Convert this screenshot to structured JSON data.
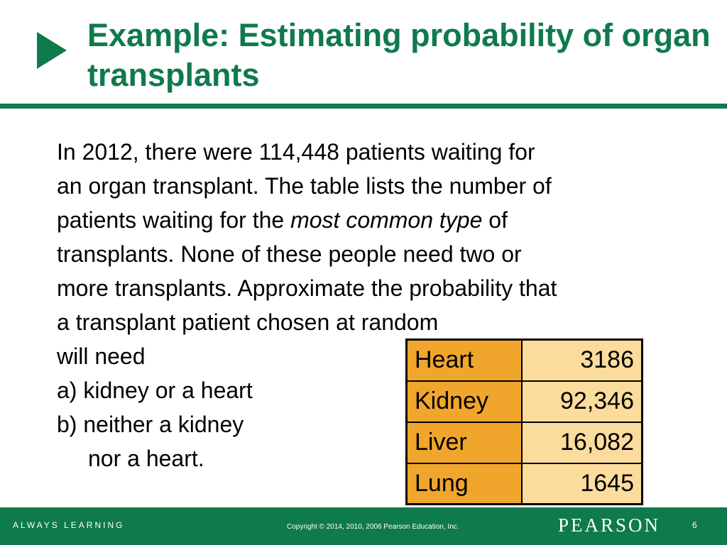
{
  "slide": {
    "title": "Example: Estimating probability of organ transplants",
    "bullet_icon": "right-triangle-icon",
    "accent_color": "#0f7a4c"
  },
  "body": {
    "line1": "In 2012, there were 114,448 patients waiting for",
    "line2": "an organ transplant. The table lists the number of",
    "line3_pre": "patients waiting for the ",
    "line3_em": "most common type",
    "line3_post": " of",
    "line4": "transplants. None of these people need two or",
    "line5": "more transplants. Approximate the probability that",
    "line6": "a transplant patient chosen at random",
    "line7": "will need",
    "line8": "a) kidney or a heart",
    "line9": "b) neither a kidney",
    "line10": "nor a heart."
  },
  "table": {
    "header_color": "#f0a52c",
    "value_color": "#fbdc9c",
    "rows": [
      {
        "organ": "Heart",
        "count": "3186"
      },
      {
        "organ": "Kidney",
        "count": "92,346"
      },
      {
        "organ": "Liver",
        "count": "16,082"
      },
      {
        "organ": "Lung",
        "count": "1645"
      }
    ]
  },
  "footer": {
    "tagline": "ALWAYS LEARNING",
    "copyright": "Copyright © 2014, 2010, 2006  Pearson Education, Inc.",
    "logo": "PEARSON",
    "page_number": "6"
  }
}
